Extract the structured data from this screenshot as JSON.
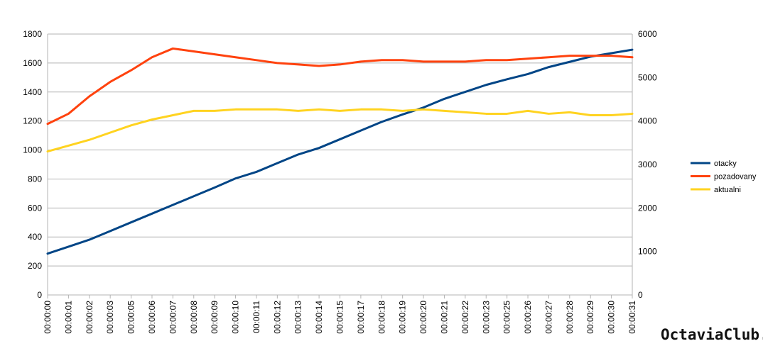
{
  "watermark": "OctaviaClub.cz",
  "chart_data": {
    "type": "line",
    "x": [
      "00:00:00",
      "00:00:01",
      "00:00:02",
      "00:00:03",
      "00:00:05",
      "00:00:06",
      "00:00:07",
      "00:00:08",
      "00:00:09",
      "00:00:10",
      "00:00:11",
      "00:00:12",
      "00:00:13",
      "00:00:14",
      "00:00:15",
      "00:00:17",
      "00:00:18",
      "00:00:19",
      "00:00:20",
      "00:00:21",
      "00:00:22",
      "00:00:23",
      "00:00:25",
      "00:00:26",
      "00:00:27",
      "00:00:28",
      "00:00:29",
      "00:00:30",
      "00:00:31"
    ],
    "y_left": {
      "min": 0,
      "max": 1800,
      "step": 200
    },
    "y_right": {
      "min": 0,
      "max": 6000,
      "step": 1000
    },
    "grid": true,
    "legend_position": "right",
    "series": [
      {
        "name": "otacky",
        "axis": "right",
        "color": "#004586",
        "values": [
          950,
          1110,
          1270,
          1470,
          1670,
          1870,
          2070,
          2270,
          2470,
          2680,
          2830,
          3030,
          3230,
          3380,
          3580,
          3780,
          3980,
          4150,
          4310,
          4510,
          4670,
          4830,
          4960,
          5080,
          5240,
          5360,
          5480,
          5560,
          5640
        ]
      },
      {
        "name": "pozadovany",
        "axis": "left",
        "color": "#ff420e",
        "values": [
          1180,
          1250,
          1370,
          1470,
          1550,
          1640,
          1700,
          1680,
          1660,
          1640,
          1620,
          1600,
          1590,
          1580,
          1590,
          1610,
          1620,
          1620,
          1610,
          1610,
          1610,
          1620,
          1620,
          1630,
          1640,
          1650,
          1650,
          1650,
          1640
        ]
      },
      {
        "name": "aktualni",
        "axis": "left",
        "color": "#ffd320",
        "values": [
          990,
          1030,
          1070,
          1120,
          1170,
          1210,
          1240,
          1270,
          1270,
          1280,
          1280,
          1280,
          1270,
          1280,
          1270,
          1280,
          1280,
          1270,
          1280,
          1270,
          1260,
          1250,
          1250,
          1270,
          1250,
          1260,
          1240,
          1240,
          1250
        ]
      }
    ]
  }
}
